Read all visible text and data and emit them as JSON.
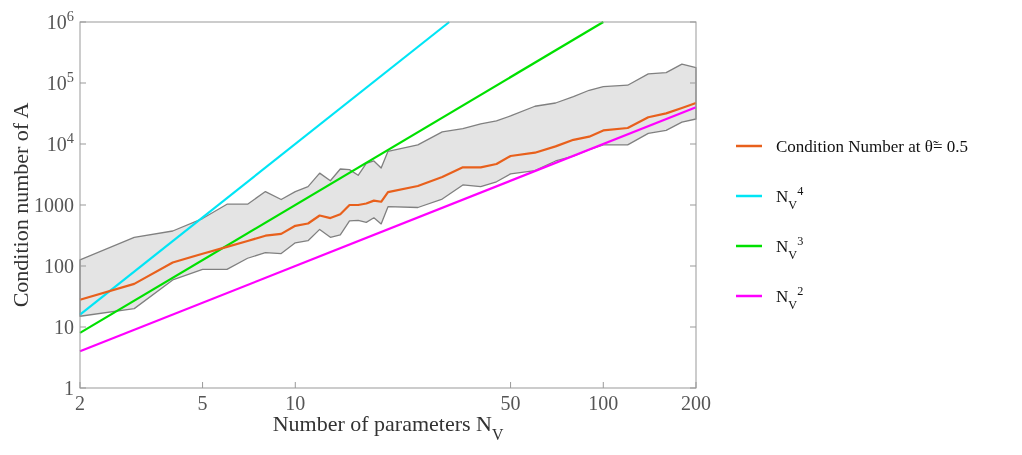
{
  "chart_data": {
    "type": "line",
    "log": "xy",
    "xlabel": "Number of parameters N$_{V}$",
    "ylabel": "Condition number of A",
    "legend": "right",
    "xlim": [
      2,
      200
    ],
    "ylim": [
      1,
      1000000
    ],
    "xticks": [
      2,
      5,
      10,
      50,
      100,
      200
    ],
    "yticks": [
      1,
      10,
      100,
      1000,
      {
        "value": 10000,
        "label": "10$^{4}$"
      },
      {
        "value": 100000,
        "label": "10$^{5}$"
      },
      {
        "value": 1000000,
        "label": "10$^{6}$"
      }
    ],
    "series": [
      {
        "name": "Condition Number at θ̃= 0.5",
        "color": "#e8601c",
        "x": [
          2,
          3,
          4,
          5,
          6,
          7,
          8,
          9,
          10,
          11,
          12,
          13,
          14,
          15,
          16,
          17,
          18,
          19,
          20,
          25,
          30,
          35,
          40,
          45,
          50,
          60,
          70,
          80,
          90,
          100,
          120,
          140,
          160,
          180,
          200
        ],
        "values": [
          28,
          51,
          114,
          159,
          206,
          257,
          314,
          336,
          456,
          498,
          672,
          610,
          707,
          1000,
          1000,
          1060,
          1180,
          1130,
          1630,
          2050,
          2880,
          4150,
          4150,
          4700,
          6350,
          7200,
          9140,
          11700,
          13200,
          16700,
          18300,
          27400,
          31800,
          39000,
          47000
        ],
        "lower": [
          15,
          20,
          59,
          88,
          88,
          134,
          166,
          160,
          240,
          260,
          398,
          295,
          323,
          550,
          560,
          520,
          617,
          490,
          940,
          910,
          1250,
          2130,
          2000,
          2400,
          3240,
          3660,
          5270,
          6350,
          8100,
          9700,
          9700,
          14900,
          16700,
          22800,
          25700
        ],
        "upper": [
          126,
          295,
          375,
          600,
          1030,
          1030,
          1660,
          1230,
          1660,
          2000,
          3330,
          2500,
          3890,
          3800,
          3070,
          4800,
          5270,
          4050,
          7600,
          9700,
          15800,
          17800,
          21400,
          24000,
          28800,
          41600,
          47000,
          60000,
          76000,
          87000,
          92000,
          141000,
          148000,
          204000,
          178000
        ]
      },
      {
        "name": "N$_{V}$$^{4}$",
        "color": "#00e5f5",
        "x": [
          2,
          31.62
        ],
        "values": [
          16,
          1000000
        ]
      },
      {
        "name": "N$_{V}$$^{3}$",
        "color": "#00e000",
        "x": [
          2,
          100
        ],
        "values": [
          8,
          1000000
        ]
      },
      {
        "name": "N$_{V}$$^{2}$",
        "color": "#ff00ff",
        "x": [
          2,
          200
        ],
        "values": [
          4,
          40000
        ]
      }
    ]
  }
}
